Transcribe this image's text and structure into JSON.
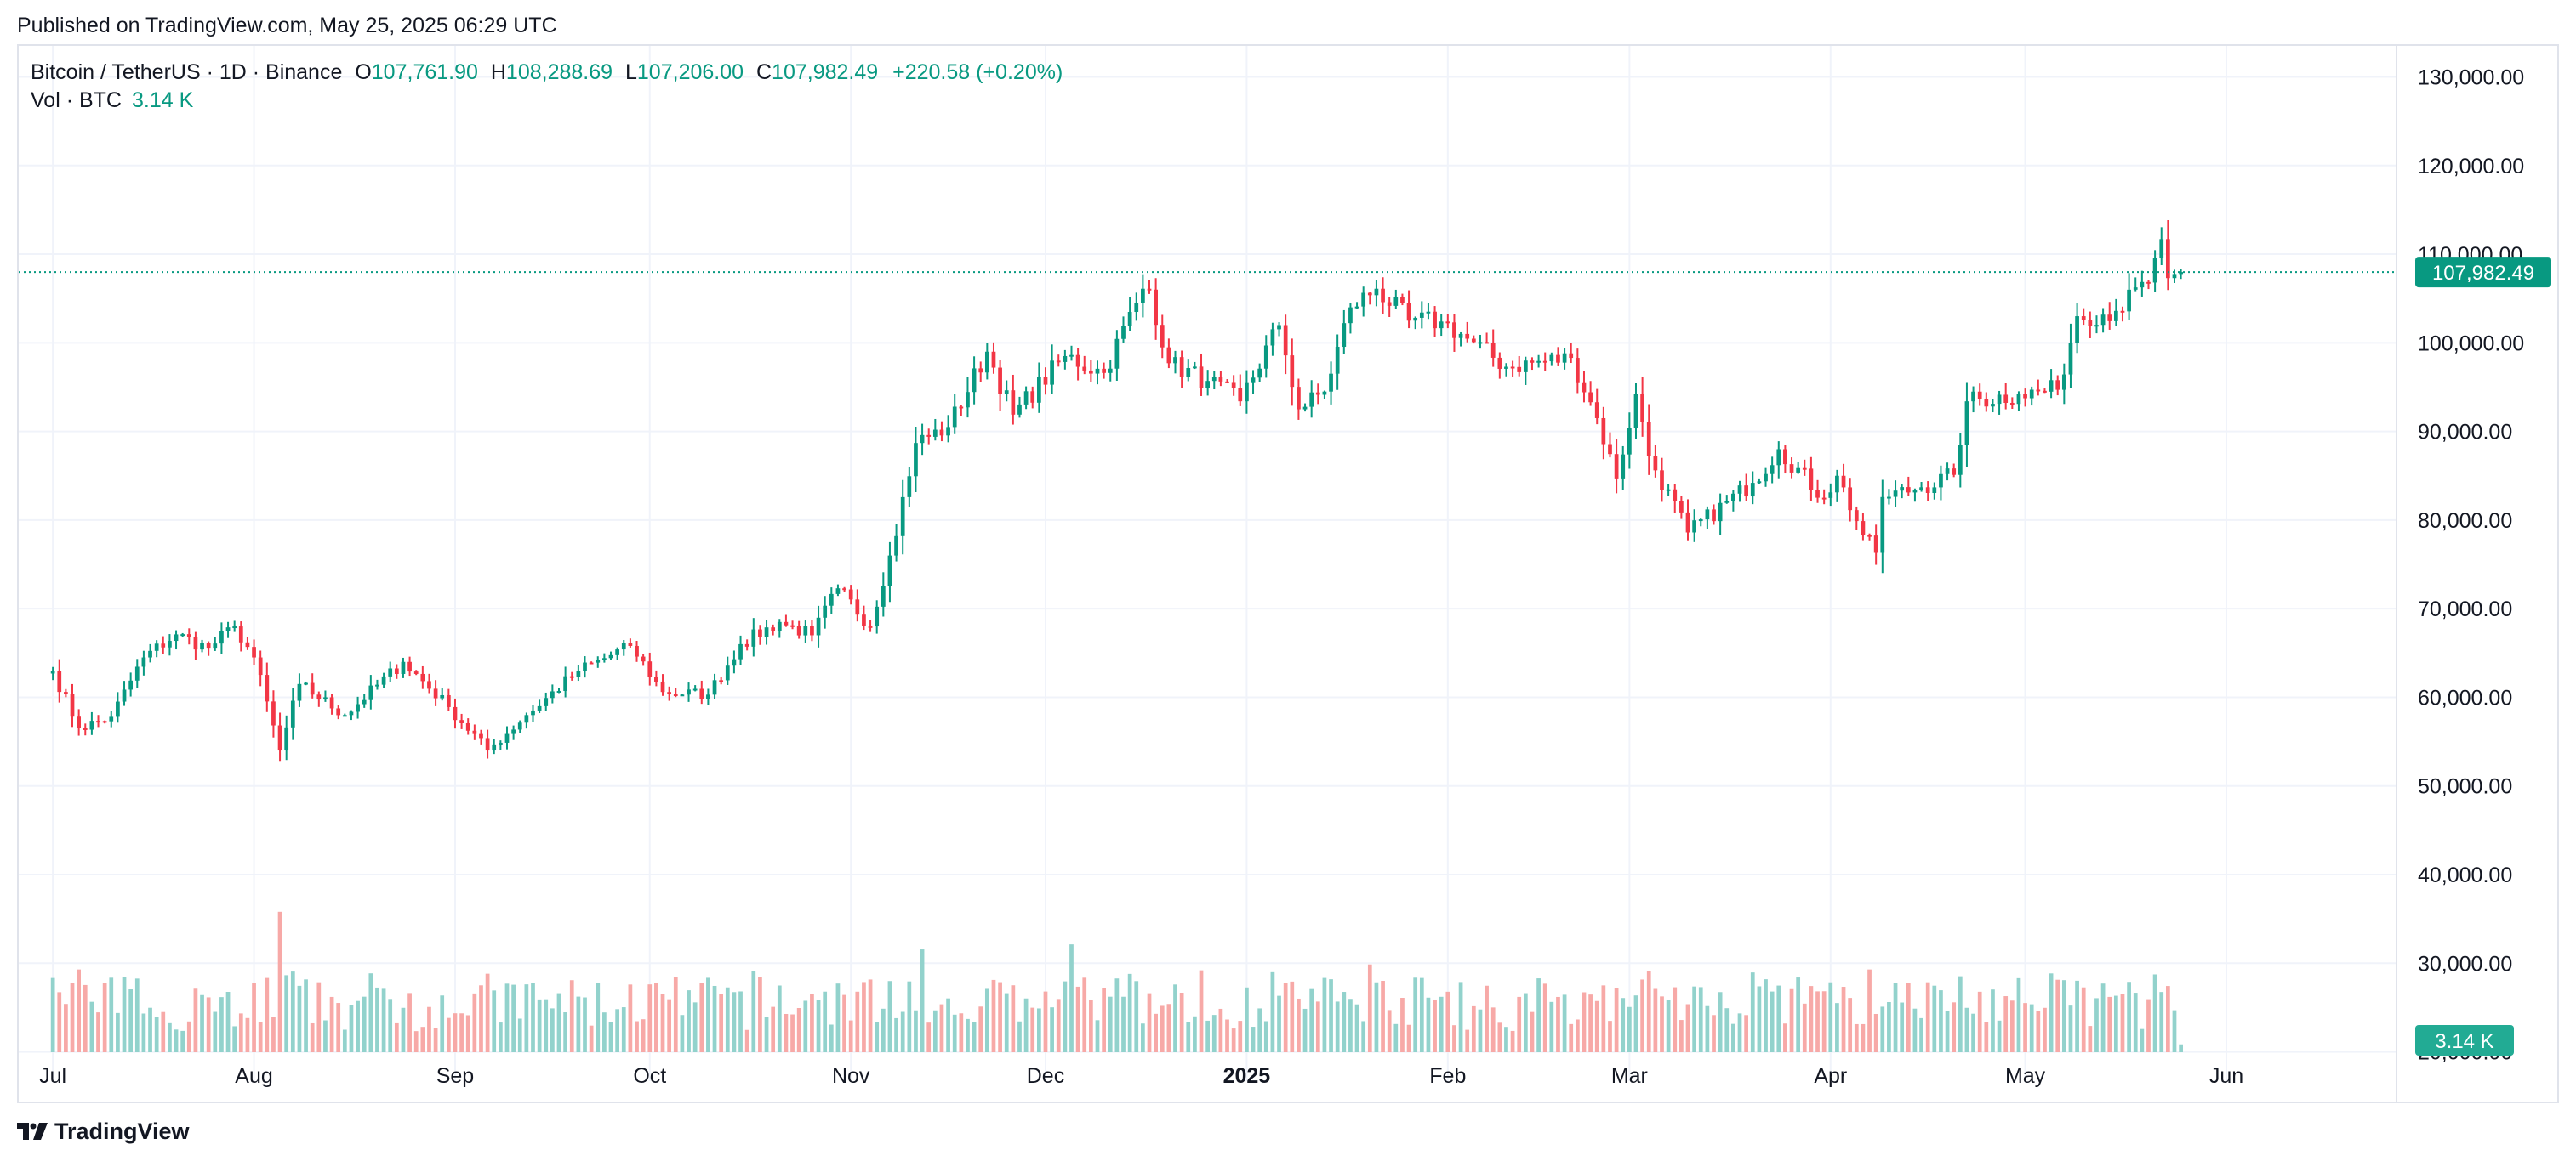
{
  "header": {
    "published": "Published on TradingView.com, May 25, 2025 06:29 UTC"
  },
  "legend": {
    "symbol": "Bitcoin / TetherUS · 1D · Binance",
    "o_label": "O",
    "o_value": "107,761.90",
    "h_label": "H",
    "h_value": "108,288.69",
    "l_label": "L",
    "l_value": "107,206.00",
    "c_label": "C",
    "c_value": "107,982.49",
    "change": "+220.58 (+0.20%)",
    "vol_label": "Vol · BTC",
    "vol_value": "3.14 K"
  },
  "footer": {
    "brand": "TradingView"
  },
  "colors": {
    "up": "#089981",
    "down": "#f23645",
    "up_vol": "#92d2cc",
    "down_vol": "#f7a9a7",
    "grid": "#f0f3fa",
    "text": "#131722"
  },
  "chart_data": {
    "type": "candlestick",
    "symbol": "BTCUSDT",
    "interval": "1D",
    "x_tick_labels": [
      "Jul",
      "Aug",
      "Sep",
      "Oct",
      "Nov",
      "Dec",
      "2025",
      "Feb",
      "Mar",
      "Apr",
      "May",
      "Jun"
    ],
    "x_ticks": [
      "2024-07-01",
      "2024-08-01",
      "2024-09-01",
      "2024-10-01",
      "2024-11-01",
      "2024-12-01",
      "2025-01-01",
      "2025-02-01",
      "2025-03-01",
      "2025-04-01",
      "2025-05-01",
      "2025-06-01"
    ],
    "y_tick_labels": [
      "20,000.00",
      "30,000.00",
      "40,000.00",
      "50,000.00",
      "60,000.00",
      "70,000.00",
      "80,000.00",
      "90,000.00",
      "100,000.00",
      "110,000.00",
      "120,000.00",
      "130,000.00"
    ],
    "y_ticks": [
      20000,
      30000,
      40000,
      50000,
      60000,
      70000,
      80000,
      90000,
      100000,
      110000,
      120000,
      130000
    ],
    "ylim": [
      16700,
      133500
    ],
    "last_price": 107982.49,
    "last_price_label": "107,982.49",
    "last_volume_label": "3.14 K",
    "grid": true,
    "volume_unit": "BTC",
    "closes_anchor": [
      [
        "2024-07-01",
        63000
      ],
      [
        "2024-07-05",
        56500
      ],
      [
        "2024-07-10",
        57800
      ],
      [
        "2024-07-15",
        64500
      ],
      [
        "2024-07-20",
        67100
      ],
      [
        "2024-07-25",
        65500
      ],
      [
        "2024-07-29",
        68000
      ],
      [
        "2024-08-01",
        64500
      ],
      [
        "2024-08-05",
        54000
      ],
      [
        "2024-08-08",
        61500
      ],
      [
        "2024-08-15",
        58000
      ],
      [
        "2024-08-24",
        64000
      ],
      [
        "2024-08-31",
        58900
      ],
      [
        "2024-09-06",
        54000
      ],
      [
        "2024-09-12",
        58000
      ],
      [
        "2024-09-20",
        63000
      ],
      [
        "2024-09-28",
        65800
      ],
      [
        "2024-10-03",
        60600
      ],
      [
        "2024-10-10",
        60300
      ],
      [
        "2024-10-15",
        66000
      ],
      [
        "2024-10-21",
        68500
      ],
      [
        "2024-10-26",
        67000
      ],
      [
        "2024-10-30",
        72300
      ],
      [
        "2024-11-04",
        68000
      ],
      [
        "2024-11-07",
        76000
      ],
      [
        "2024-11-11",
        88700
      ],
      [
        "2024-11-16",
        90500
      ],
      [
        "2024-11-22",
        99000
      ],
      [
        "2024-11-26",
        91900
      ],
      [
        "2024-12-04",
        98500
      ],
      [
        "2024-12-10",
        96600
      ],
      [
        "2024-12-16",
        106100
      ],
      [
        "2024-12-17",
        106000
      ],
      [
        "2024-12-20",
        97700
      ],
      [
        "2024-12-26",
        95700
      ],
      [
        "2024-12-31",
        93400
      ],
      [
        "2025-01-06",
        102000
      ],
      [
        "2025-01-09",
        92500
      ],
      [
        "2025-01-13",
        94500
      ],
      [
        "2025-01-17",
        104000
      ],
      [
        "2025-01-21",
        106100
      ],
      [
        "2025-01-26",
        102500
      ],
      [
        "2025-01-31",
        102400
      ],
      [
        "2025-02-03",
        101000
      ],
      [
        "2025-02-10",
        97300
      ],
      [
        "2025-02-20",
        98300
      ],
      [
        "2025-02-24",
        91500
      ],
      [
        "2025-02-27",
        84700
      ],
      [
        "2025-03-02",
        94200
      ],
      [
        "2025-03-04",
        87200
      ],
      [
        "2025-03-10",
        78600
      ],
      [
        "2025-03-20",
        84200
      ],
      [
        "2025-03-24",
        88000
      ],
      [
        "2025-03-31",
        82500
      ],
      [
        "2025-04-02",
        85000
      ],
      [
        "2025-04-06",
        78300
      ],
      [
        "2025-04-08",
        76300
      ],
      [
        "2025-04-09",
        82600
      ],
      [
        "2025-04-15",
        83700
      ],
      [
        "2025-04-20",
        85100
      ],
      [
        "2025-04-22",
        93400
      ],
      [
        "2025-04-30",
        94200
      ],
      [
        "2025-05-06",
        94700
      ],
      [
        "2025-05-09",
        103000
      ],
      [
        "2025-05-15",
        103600
      ],
      [
        "2025-05-20",
        106800
      ],
      [
        "2025-05-21",
        109600
      ],
      [
        "2025-05-22",
        111700
      ],
      [
        "2025-05-23",
        107300
      ],
      [
        "2025-05-24",
        107761.9
      ],
      [
        "2025-05-25",
        107982.49
      ]
    ],
    "last_candle": {
      "date": "2025-05-25",
      "open": 107761.9,
      "high": 108288.69,
      "low": 107206.0,
      "close": 107982.49,
      "volume": 3140
    },
    "volume_peaks": [
      [
        "2024-08-05",
        56000
      ],
      [
        "2024-12-05",
        43000
      ],
      [
        "2024-11-12",
        41000
      ],
      [
        "2025-01-20",
        35000
      ],
      [
        "2024-07-05",
        33000
      ],
      [
        "2025-04-07",
        33000
      ],
      [
        "2025-03-03",
        29000
      ],
      [
        "2025-02-03",
        28000
      ]
    ]
  }
}
